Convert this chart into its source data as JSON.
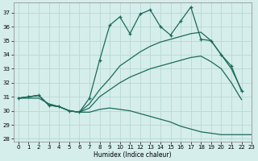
{
  "title": "",
  "xlabel": "Humidex (Indice chaleur)",
  "xlim": [
    -0.5,
    23
  ],
  "ylim": [
    27.8,
    37.7
  ],
  "yticks": [
    28,
    29,
    30,
    31,
    32,
    33,
    34,
    35,
    36,
    37
  ],
  "xticks": [
    0,
    1,
    2,
    3,
    4,
    5,
    6,
    7,
    8,
    9,
    10,
    11,
    12,
    13,
    14,
    15,
    16,
    17,
    18,
    19,
    20,
    21,
    22,
    23
  ],
  "background_color": "#d5edeb",
  "grid_color": "#b8d8d5",
  "line_color": "#1a6b5a",
  "lines": [
    {
      "x": [
        0,
        1,
        2,
        3,
        4,
        5,
        6,
        7,
        8,
        9,
        10,
        11,
        12,
        13,
        14,
        15,
        16,
        17,
        18,
        19,
        20,
        21,
        22
      ],
      "y": [
        30.9,
        31.0,
        31.1,
        30.4,
        30.3,
        30.0,
        29.9,
        30.9,
        33.6,
        36.1,
        36.7,
        35.5,
        36.9,
        37.2,
        36.0,
        35.4,
        36.4,
        37.4,
        35.1,
        35.0,
        34.0,
        33.2,
        31.4
      ],
      "marker": "+"
    },
    {
      "x": [
        0,
        1,
        2,
        3,
        4,
        5,
        6,
        7,
        8,
        9,
        10,
        11,
        12,
        13,
        14,
        15,
        16,
        17,
        18,
        19,
        20,
        21,
        22
      ],
      "y": [
        30.9,
        31.0,
        31.1,
        30.4,
        30.3,
        30.0,
        29.9,
        30.5,
        31.5,
        32.3,
        33.2,
        33.7,
        34.2,
        34.6,
        34.9,
        35.1,
        35.3,
        35.5,
        35.6,
        35.0,
        34.0,
        33.0,
        31.5
      ],
      "marker": null
    },
    {
      "x": [
        0,
        1,
        2,
        3,
        4,
        5,
        6,
        7,
        8,
        9,
        10,
        11,
        12,
        13,
        14,
        15,
        16,
        17,
        18,
        19,
        20,
        21,
        22
      ],
      "y": [
        30.9,
        31.0,
        31.1,
        30.4,
        30.3,
        30.0,
        29.9,
        30.2,
        31.0,
        31.5,
        32.0,
        32.4,
        32.7,
        33.0,
        33.2,
        33.4,
        33.6,
        33.8,
        33.9,
        33.5,
        33.0,
        32.0,
        30.8
      ],
      "marker": null
    },
    {
      "x": [
        0,
        1,
        2,
        3,
        4,
        5,
        6,
        7,
        8,
        9,
        10,
        11,
        12,
        13,
        14,
        15,
        16,
        17,
        18,
        19,
        20,
        21,
        22,
        23
      ],
      "y": [
        30.9,
        30.9,
        30.9,
        30.5,
        30.3,
        30.0,
        29.9,
        29.9,
        30.1,
        30.2,
        30.1,
        30.0,
        29.8,
        29.6,
        29.4,
        29.2,
        28.9,
        28.7,
        28.5,
        28.4,
        28.3,
        28.3,
        28.3,
        28.3
      ],
      "marker": null
    }
  ]
}
